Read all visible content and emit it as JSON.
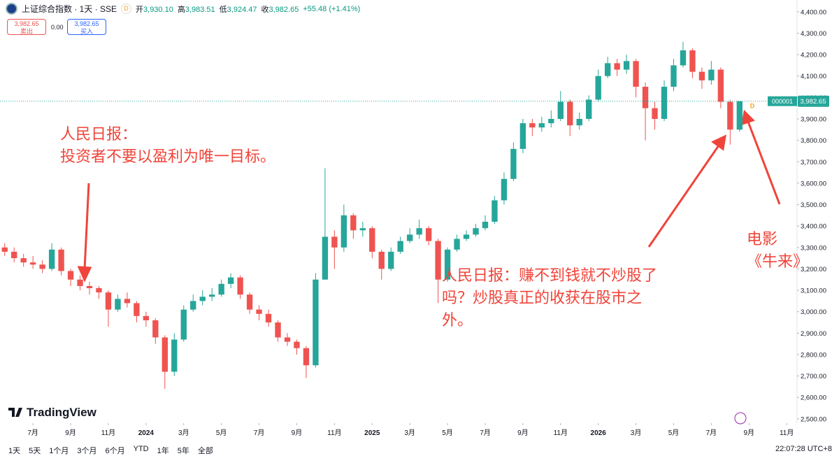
{
  "chart_data": {
    "type": "candlestick",
    "title": "上证综合指数 · 1天 · SSE",
    "event_marker": "D",
    "header_ohlc": [
      {
        "label": "开",
        "value": "3,930.10"
      },
      {
        "label": "高",
        "value": "3,983.51"
      },
      {
        "label": "低",
        "value": "3,924.47"
      },
      {
        "label": "收",
        "value": "3,982.65"
      }
    ],
    "header_change": "+55.48 (+1.41%)",
    "sell": {
      "price": "3,982.65",
      "label": "卖出"
    },
    "spread": "0.00",
    "buy": {
      "price": "3,982.65",
      "label": "买入"
    },
    "symbol_code": "000001",
    "last_price_label": "3,982.65",
    "logo": "TradingView",
    "toolbar": [
      "1天",
      "5天",
      "1个月",
      "3个月",
      "6个月",
      "YTD",
      "1年",
      "5年",
      "全部"
    ],
    "clock": "22:07:28 UTC+8",
    "up_color": "#26a69a",
    "down_color": "#ef5350",
    "grid": false,
    "annotations": [
      {
        "lines": [
          "人民日报：",
          "投资者不要以盈利为唯一目标。"
        ]
      },
      {
        "lines": [
          "人民日报：赚不到钱就不炒股了",
          "吗？炒股真正的收获在股市之",
          "外。"
        ]
      },
      {
        "lines": [
          "电影",
          "《牛来》"
        ]
      }
    ],
    "xlim": [
      -1.75,
      40.55
    ],
    "xticks": [
      {
        "value": 0,
        "label": "7月"
      },
      {
        "value": 2,
        "label": "9月"
      },
      {
        "value": 4,
        "label": "11月"
      },
      {
        "value": 6,
        "label": "2024"
      },
      {
        "value": 8,
        "label": "3月"
      },
      {
        "value": 10,
        "label": "5月"
      },
      {
        "value": 12,
        "label": "7月"
      },
      {
        "value": 14,
        "label": "9月"
      },
      {
        "value": 16,
        "label": "11月"
      },
      {
        "value": 18,
        "label": "2025"
      },
      {
        "value": 20,
        "label": "3月"
      },
      {
        "value": 22,
        "label": "5月"
      },
      {
        "value": 24,
        "label": "7月"
      },
      {
        "value": 26,
        "label": "9月"
      },
      {
        "value": 28,
        "label": "11月"
      },
      {
        "value": 30,
        "label": "2026"
      },
      {
        "value": 32,
        "label": "3月"
      },
      {
        "value": 34,
        "label": "5月"
      },
      {
        "value": 36,
        "label": "7月"
      },
      {
        "value": 38,
        "label": "9月"
      },
      {
        "value": 40,
        "label": "11月"
      }
    ],
    "ylim": [
      2480,
      4455
    ],
    "yticks": [
      {
        "value": 2500,
        "label": "2,500.00"
      },
      {
        "value": 2600,
        "label": "2,600.00"
      },
      {
        "value": 2700,
        "label": "2,700.00"
      },
      {
        "value": 2800,
        "label": "2,800.00"
      },
      {
        "value": 2900,
        "label": "2,900.00"
      },
      {
        "value": 3000,
        "label": "3,000.00"
      },
      {
        "value": 3100,
        "label": "3,100.00"
      },
      {
        "value": 3200,
        "label": "3,200.00"
      },
      {
        "value": 3300,
        "label": "3,300.00"
      },
      {
        "value": 3400,
        "label": "3,400.00"
      },
      {
        "value": 3500,
        "label": "3,500.00"
      },
      {
        "value": 3600,
        "label": "3,600.00"
      },
      {
        "value": 3700,
        "label": "3,700.00"
      },
      {
        "value": 3800,
        "label": "3,800.00"
      },
      {
        "value": 3900,
        "label": "3,900.00"
      },
      {
        "value": 4000,
        "label": "4,000.00"
      },
      {
        "value": 4100,
        "label": "4,100.00"
      },
      {
        "value": 4200,
        "label": "4,200.00"
      },
      {
        "value": 4300,
        "label": "4,300.00"
      },
      {
        "value": 4400,
        "label": "4,400.00"
      }
    ],
    "x": [
      -1.5,
      -1,
      -0.5,
      0,
      0.5,
      1,
      1.5,
      2,
      2.5,
      3,
      3.5,
      4,
      4.5,
      5,
      5.5,
      6,
      6.5,
      7,
      7.5,
      8,
      8.5,
      9,
      9.5,
      10,
      10.5,
      11,
      11.5,
      12,
      12.5,
      13,
      13.5,
      14,
      14.5,
      15,
      15.5,
      16,
      16.5,
      17,
      17.5,
      18,
      18.5,
      19,
      19.5,
      20,
      20.5,
      21,
      21.5,
      22,
      22.5,
      23,
      23.5,
      24,
      24.5,
      25,
      25.5,
      26,
      26.5,
      27,
      27.5,
      28,
      28.5,
      29,
      29.5,
      30,
      30.5,
      31,
      31.5,
      32,
      32.5,
      33,
      33.5,
      34,
      34.5,
      35,
      35.5,
      36,
      36.5,
      37,
      37.5
    ],
    "open": [
      3300,
      3280,
      3250,
      3230,
      3220,
      3200,
      3290,
      3190,
      3150,
      3120,
      3110,
      3090,
      3010,
      3060,
      3040,
      2980,
      2960,
      2880,
      2720,
      2870,
      3010,
      3050,
      3070,
      3080,
      3130,
      3160,
      3080,
      3010,
      2990,
      2950,
      2880,
      2860,
      2830,
      2750,
      3150,
      3350,
      3300,
      3450,
      3380,
      3390,
      3280,
      3200,
      3280,
      3330,
      3360,
      3390,
      3330,
      3150,
      3290,
      3340,
      3360,
      3390,
      3420,
      3520,
      3620,
      3760,
      3880,
      3860,
      3880,
      3900,
      3980,
      3870,
      3900,
      3990,
      4100,
      4160,
      4130,
      4170,
      4050,
      3950,
      3900,
      4050,
      4150,
      4220,
      4120,
      4080,
      4130,
      3980,
      3850
    ],
    "high": [
      3320,
      3300,
      3270,
      3260,
      3240,
      3320,
      3300,
      3200,
      3170,
      3140,
      3120,
      3100,
      3080,
      3090,
      3050,
      3000,
      2970,
      2890,
      2900,
      3030,
      3080,
      3100,
      3110,
      3150,
      3180,
      3170,
      3090,
      3030,
      3010,
      2960,
      2900,
      2870,
      2840,
      3180,
      3670,
      3380,
      3500,
      3460,
      3420,
      3400,
      3290,
      3300,
      3350,
      3390,
      3430,
      3400,
      3340,
      3300,
      3360,
      3380,
      3410,
      3450,
      3540,
      3650,
      3790,
      3900,
      3900,
      3910,
      3940,
      4030,
      3990,
      3930,
      4010,
      4130,
      4190,
      4180,
      4200,
      4180,
      4070,
      3980,
      4080,
      4180,
      4260,
      4230,
      4140,
      4170,
      4140,
      3990,
      3983.51
    ],
    "low": [
      3260,
      3230,
      3210,
      3200,
      3180,
      3190,
      3170,
      3120,
      3100,
      3080,
      3060,
      2930,
      3000,
      3020,
      2950,
      2930,
      2850,
      2640,
      2700,
      2860,
      3000,
      3030,
      3050,
      3070,
      3110,
      3060,
      2990,
      2960,
      2930,
      2860,
      2840,
      2800,
      2690,
      2740,
      3150,
      3200,
      3280,
      3340,
      3350,
      3250,
      3150,
      3190,
      3270,
      3320,
      3340,
      3310,
      3040,
      3140,
      3280,
      3330,
      3350,
      3380,
      3410,
      3500,
      3610,
      3740,
      3820,
      3840,
      3860,
      3890,
      3820,
      3850,
      3890,
      3980,
      4090,
      4100,
      4110,
      4000,
      3800,
      3850,
      3890,
      4030,
      4140,
      4090,
      4040,
      4060,
      3950,
      3780,
      3840
    ],
    "close": [
      3280,
      3250,
      3230,
      3220,
      3200,
      3290,
      3190,
      3150,
      3120,
      3110,
      3090,
      3010,
      3060,
      3040,
      2980,
      2960,
      2880,
      2720,
      2870,
      3010,
      3050,
      3070,
      3080,
      3130,
      3160,
      3080,
      3010,
      2990,
      2950,
      2880,
      2860,
      2830,
      2750,
      3150,
      3350,
      3300,
      3450,
      3380,
      3390,
      3280,
      3200,
      3280,
      3330,
      3360,
      3390,
      3330,
      3150,
      3290,
      3340,
      3360,
      3390,
      3420,
      3520,
      3620,
      3760,
      3880,
      3860,
      3880,
      3900,
      3980,
      3870,
      3900,
      3990,
      4100,
      4160,
      4130,
      4170,
      4050,
      3950,
      3900,
      4050,
      4150,
      4220,
      4120,
      4080,
      4130,
      3980,
      3850,
      3982.65
    ]
  }
}
